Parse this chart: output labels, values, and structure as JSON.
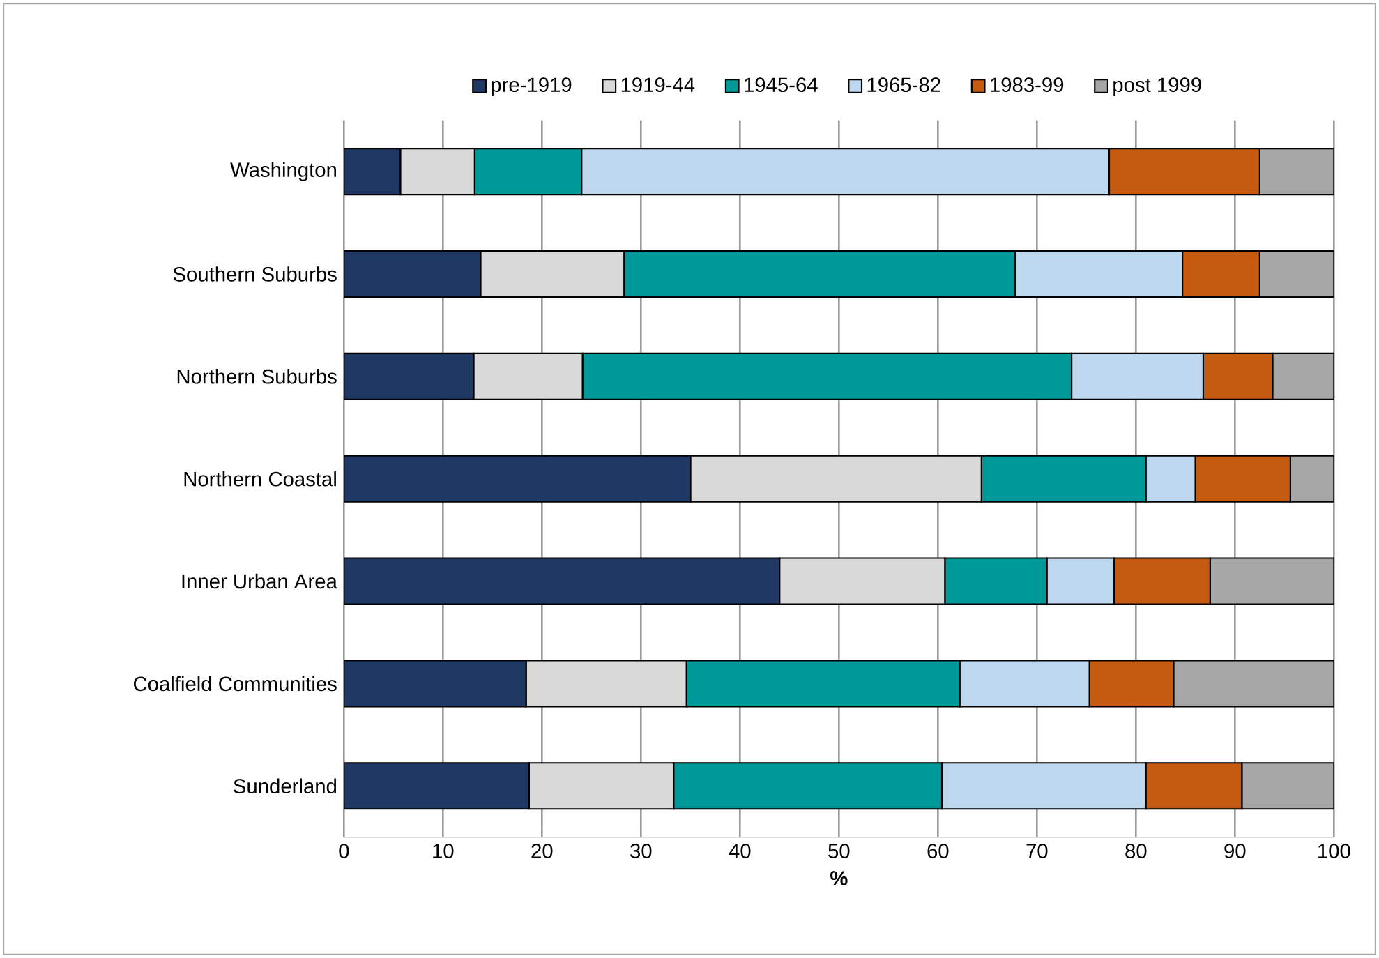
{
  "chart_data": {
    "type": "bar",
    "orientation": "horizontal",
    "stacked": true,
    "categories": [
      "Washington",
      "Southern Suburbs",
      "Northern Suburbs",
      "Northern Coastal",
      "Inner Urban Area",
      "Coalfield Communities",
      "Sunderland"
    ],
    "series": [
      {
        "name": "pre-1919",
        "color": "#1f3864",
        "values": [
          5.7,
          13.8,
          13.1,
          35.0,
          44.0,
          18.4,
          18.7
        ]
      },
      {
        "name": "1919-44",
        "color": "#d9d9d9",
        "values": [
          7.5,
          14.5,
          11.0,
          29.4,
          16.7,
          16.2,
          14.6
        ]
      },
      {
        "name": "1945-64",
        "color": "#009999",
        "values": [
          10.8,
          39.5,
          49.4,
          16.6,
          10.3,
          27.6,
          27.1
        ]
      },
      {
        "name": "1965-82",
        "color": "#bdd7ee",
        "values": [
          53.3,
          16.9,
          13.3,
          5.0,
          6.8,
          13.1,
          20.6
        ]
      },
      {
        "name": "1983-99",
        "color": "#c55a11",
        "values": [
          15.2,
          7.8,
          7.0,
          9.6,
          9.7,
          8.5,
          9.7
        ]
      },
      {
        "name": "post 1999",
        "color": "#a6a6a6",
        "values": [
          7.5,
          7.5,
          6.2,
          4.4,
          12.5,
          16.2,
          9.3
        ]
      }
    ],
    "xlabel": "%",
    "xlim": [
      0,
      100
    ],
    "xticks": [
      0,
      10,
      20,
      30,
      40,
      50,
      60,
      70,
      80,
      90,
      100
    ],
    "grid": "x",
    "legend": "top"
  }
}
